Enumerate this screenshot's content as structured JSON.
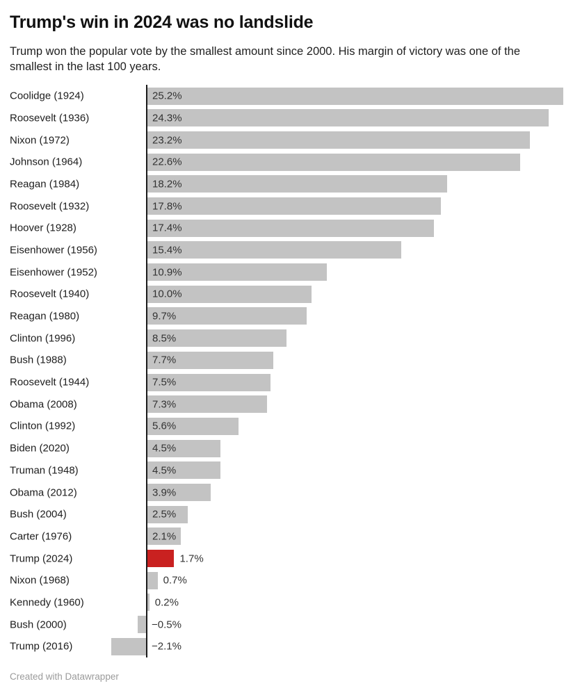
{
  "header": {
    "title": "Trump's win in 2024 was no landslide",
    "subtitle": "Trump won the popular vote by the smallest amount since 2000. His margin of victory was one of the smallest in the last 100 years."
  },
  "footer": {
    "credit": "Created with Datawrapper"
  },
  "chart_data": {
    "type": "bar",
    "orientation": "horizontal",
    "title": "Trump's win in 2024 was no landslide",
    "subtitle": "Trump won the popular vote by the smallest amount since 2000. His margin of victory was one of the smallest in the last 100 years.",
    "xlabel": "",
    "ylabel": "",
    "unit": "%",
    "xlim": [
      -2.5,
      25.2
    ],
    "grid": false,
    "legend": false,
    "categories": [
      "Coolidge (1924)",
      "Roosevelt (1936)",
      "Nixon (1972)",
      "Johnson (1964)",
      "Reagan (1984)",
      "Roosevelt (1932)",
      "Hoover (1928)",
      "Eisenhower (1956)",
      "Eisenhower (1952)",
      "Roosevelt (1940)",
      "Reagan (1980)",
      "Clinton (1996)",
      "Bush (1988)",
      "Roosevelt (1944)",
      "Obama (2008)",
      "Clinton (1992)",
      "Biden (2020)",
      "Truman (1948)",
      "Obama (2012)",
      "Bush (2004)",
      "Carter (1976)",
      "Trump (2024)",
      "Nixon (1968)",
      "Kennedy (1960)",
      "Bush (2000)",
      "Trump (2016)"
    ],
    "values": [
      25.2,
      24.3,
      23.2,
      22.6,
      18.2,
      17.8,
      17.4,
      15.4,
      10.9,
      10.0,
      9.7,
      8.5,
      7.7,
      7.5,
      7.3,
      5.6,
      4.5,
      4.5,
      3.9,
      2.5,
      2.1,
      1.7,
      0.7,
      0.2,
      -0.5,
      -2.1
    ],
    "value_labels": [
      "25.2%",
      "24.3%",
      "23.2%",
      "22.6%",
      "18.2%",
      "17.8%",
      "17.4%",
      "15.4%",
      "10.9%",
      "10.0%",
      "9.7%",
      "8.5%",
      "7.7%",
      "7.5%",
      "7.3%",
      "5.6%",
      "4.5%",
      "4.5%",
      "3.9%",
      "2.5%",
      "2.1%",
      "1.7%",
      "0.7%",
      "0.2%",
      "−0.5%",
      "−2.1%"
    ],
    "highlight": {
      "index": 21,
      "category": "Trump (2024)"
    },
    "colors": {
      "bar": "#c3c3c3",
      "highlight_bar": "#c92120",
      "axis": "#1a1a1a",
      "value_text": "#333333",
      "credit_text": "#9b9b9b"
    }
  }
}
